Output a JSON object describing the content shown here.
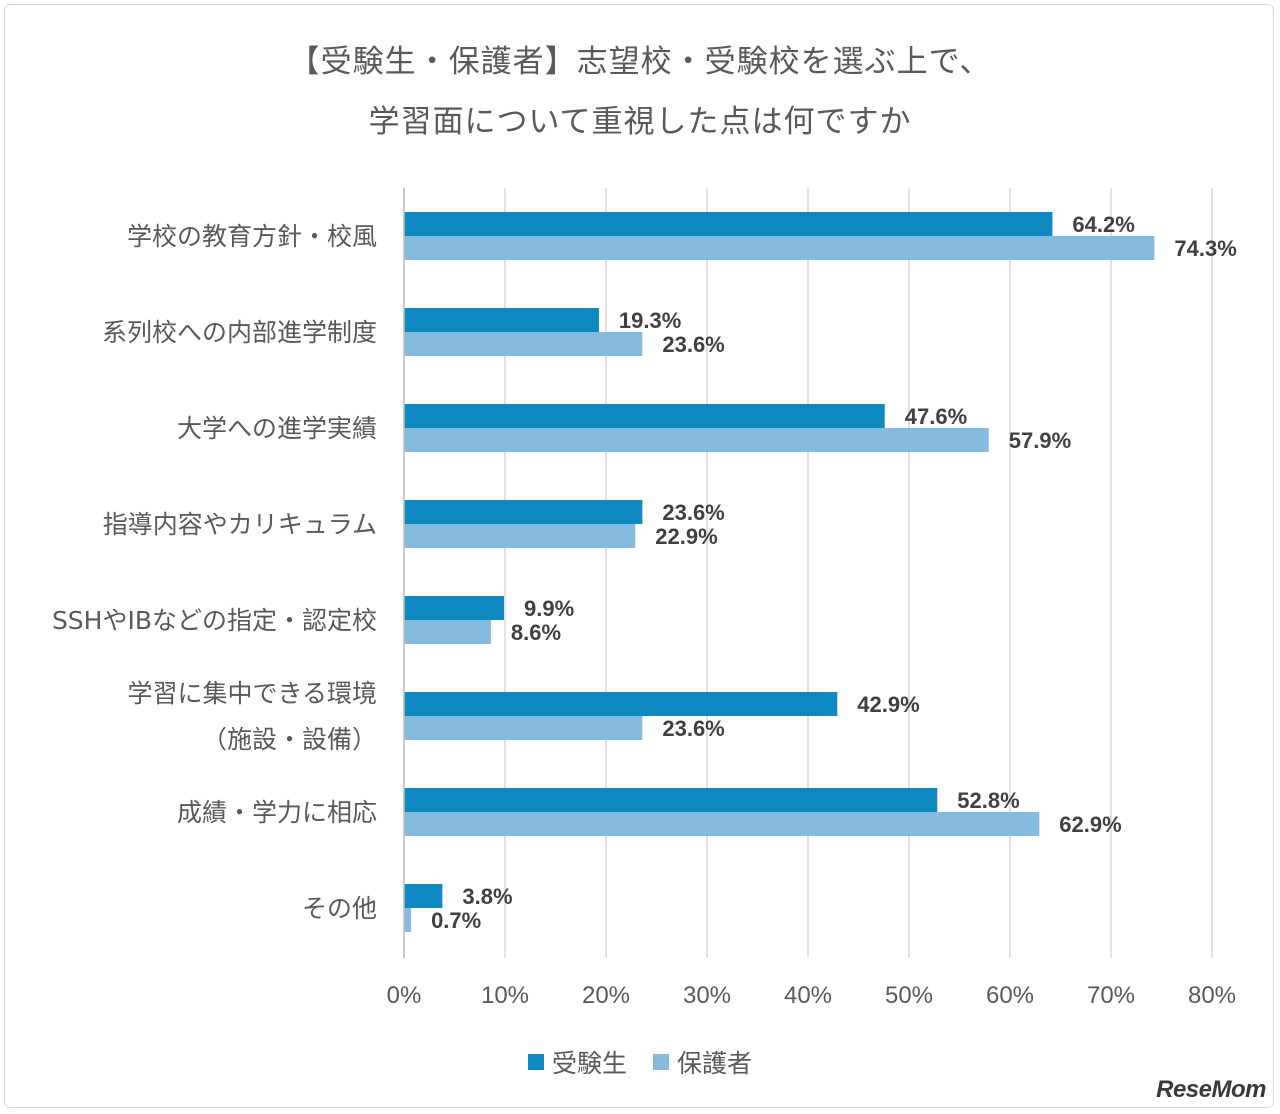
{
  "title": {
    "line1": "【受験生・保護者】志望校・受験校を選ぶ上で、",
    "line2": "学習面について重視した点は何ですか"
  },
  "watermark": "ReseMom",
  "chart_data": {
    "type": "bar",
    "orientation": "horizontal",
    "categories": [
      [
        "学校の教育方針・校風"
      ],
      [
        "系列校への内部進学制度"
      ],
      [
        "大学への進学実績"
      ],
      [
        "指導内容やカリキュラム"
      ],
      [
        "SSHやIBなどの指定・認定校"
      ],
      [
        "学習に集中できる環境",
        "（施設・設備）"
      ],
      [
        "成績・学力に相応"
      ],
      [
        "その他"
      ]
    ],
    "series": [
      {
        "name": "受験生",
        "color": "#0f8ac0",
        "values": [
          64.2,
          19.3,
          47.6,
          23.6,
          9.9,
          42.9,
          52.8,
          3.8
        ],
        "labels": [
          "64.2%",
          "19.3%",
          "47.6%",
          "23.6%",
          "9.9%",
          "42.9%",
          "52.8%",
          "3.8%"
        ]
      },
      {
        "name": "保護者",
        "color": "#86bbe0",
        "values": [
          74.3,
          23.6,
          57.9,
          22.9,
          8.6,
          23.6,
          62.9,
          0.7
        ],
        "labels": [
          "74.3%",
          "23.6%",
          "57.9%",
          "22.9%",
          "8.6%",
          "23.6%",
          "62.9%",
          "0.7%"
        ]
      }
    ],
    "xlim": [
      0,
      80
    ],
    "xticks": [
      "0%",
      "10%",
      "20%",
      "30%",
      "40%",
      "50%",
      "60%",
      "70%",
      "80%"
    ],
    "grid": true,
    "legend_position": "bottom"
  }
}
